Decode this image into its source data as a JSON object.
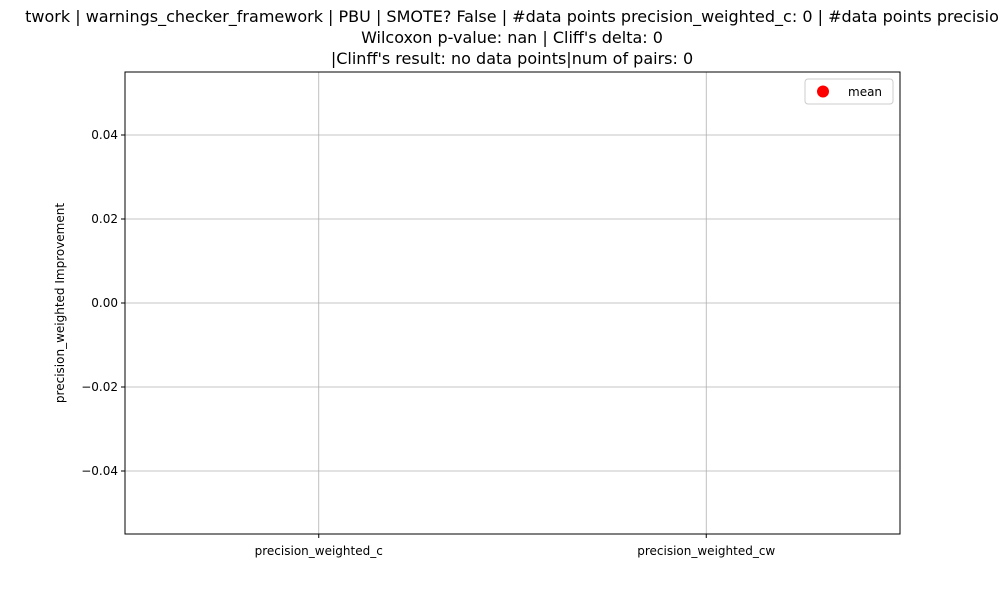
{
  "chart_data": {
    "type": "scatter",
    "title_lines": [
      "twork | warnings_checker_framework | PBU | SMOTE? False | #data points precision_weighted_c: 0 | #data points precisio",
      "Wilcoxon p-value: nan | Cliff's delta: 0",
      "|Clinff's result: no data points|num of pairs: 0"
    ],
    "xlabel": "",
    "ylabel": "precision_weighted Improvement",
    "categories": [
      "precision_weighted_c",
      "precision_weighted_cw"
    ],
    "ylim": [
      -0.055,
      0.055
    ],
    "yticks": [
      {
        "value": 0.04,
        "label": "0.04"
      },
      {
        "value": 0.02,
        "label": "0.02"
      },
      {
        "value": 0.0,
        "label": "0.00"
      },
      {
        "value": -0.02,
        "label": "−0.02"
      },
      {
        "value": -0.04,
        "label": "−0.04"
      }
    ],
    "grid": true,
    "legend": {
      "placement": "top-right",
      "entries": [
        {
          "label": "mean",
          "marker": "circle",
          "color": "#ff0000"
        }
      ]
    },
    "series": [
      {
        "name": "mean",
        "values": [],
        "color": "#ff0000"
      }
    ]
  },
  "colors": {
    "grid": "#b0b0b0",
    "axes": "#000000",
    "mean_marker": "#ff0000"
  }
}
